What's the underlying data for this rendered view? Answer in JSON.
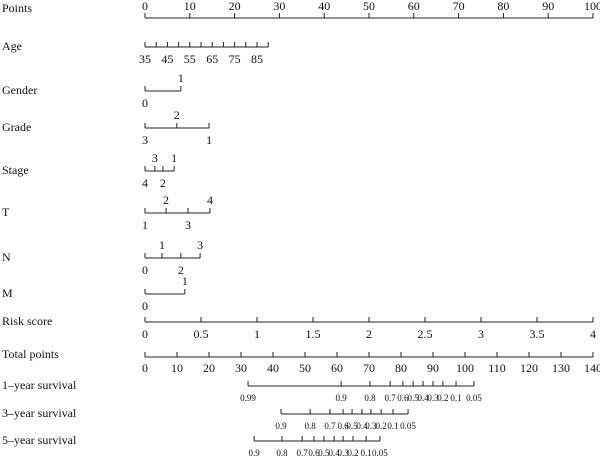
{
  "chart_data": {
    "type": "nomogram",
    "points_axis": {
      "label": "Points",
      "lim": [
        0,
        100
      ],
      "ticks": [
        0,
        10,
        20,
        30,
        40,
        50,
        60,
        70,
        80,
        90,
        100
      ]
    },
    "variables": [
      {
        "label": "Age",
        "ticks": [
          {
            "value": 35,
            "points": 0
          },
          {
            "value": null,
            "points": 2.5
          },
          {
            "value": 45,
            "points": 5
          },
          {
            "value": null,
            "points": 7.5
          },
          {
            "value": 55,
            "points": 10
          },
          {
            "value": null,
            "points": 12.5
          },
          {
            "value": 65,
            "points": 15
          },
          {
            "value": null,
            "points": 17.5
          },
          {
            "value": 75,
            "points": 20
          },
          {
            "value": null,
            "points": 22.5
          },
          {
            "value": 85,
            "points": 25
          },
          {
            "value": null,
            "points": 27.5
          }
        ]
      },
      {
        "label": "Gender",
        "ticks": [
          {
            "value": 0,
            "points": 0,
            "side": "below"
          },
          {
            "value": 1,
            "points": 8,
            "side": "above"
          }
        ]
      },
      {
        "label": "Grade",
        "ticks": [
          {
            "value": 3,
            "points": 0,
            "side": "below"
          },
          {
            "value": 2,
            "points": 7.1,
            "side": "above"
          },
          {
            "value": 1,
            "points": 14.3,
            "side": "below"
          }
        ]
      },
      {
        "label": "Stage",
        "ticks": [
          {
            "value": 4,
            "points": 0,
            "side": "below"
          },
          {
            "value": 3,
            "points": 2.2,
            "side": "above"
          },
          {
            "value": 2,
            "points": 4,
            "side": "below"
          },
          {
            "value": 1,
            "points": 6.5,
            "side": "above"
          }
        ]
      },
      {
        "label": "T",
        "ticks": [
          {
            "value": 1,
            "points": 0,
            "side": "below"
          },
          {
            "value": 2,
            "points": 4.7,
            "side": "above"
          },
          {
            "value": 3,
            "points": 9.6,
            "side": "below"
          },
          {
            "value": 4,
            "points": 14.5,
            "side": "above"
          }
        ]
      },
      {
        "label": "N",
        "ticks": [
          {
            "value": 0,
            "points": 0,
            "side": "below"
          },
          {
            "value": 1,
            "points": 3.8,
            "side": "above"
          },
          {
            "value": 2,
            "points": 8,
            "side": "below"
          },
          {
            "value": 3,
            "points": 12.3,
            "side": "above"
          }
        ]
      },
      {
        "label": "M",
        "ticks": [
          {
            "value": 0,
            "points": 0,
            "side": "below"
          },
          {
            "value": 1,
            "points": 8.9,
            "side": "above"
          }
        ]
      },
      {
        "label": "Risk score",
        "ticks": [
          {
            "value": 0,
            "points": 0
          },
          {
            "value": 0.5,
            "points": 12.5
          },
          {
            "value": 1,
            "points": 25
          },
          {
            "value": 1.5,
            "points": 37.5
          },
          {
            "value": 2,
            "points": 50
          },
          {
            "value": 2.5,
            "points": 62.5
          },
          {
            "value": 3,
            "points": 75
          },
          {
            "value": 3.5,
            "points": 87.5
          },
          {
            "value": 4,
            "points": 100
          }
        ]
      }
    ],
    "total_axis": {
      "label": "Total points",
      "lim": [
        0,
        140
      ],
      "ticks": [
        0,
        10,
        20,
        30,
        40,
        50,
        60,
        70,
        80,
        90,
        100,
        110,
        120,
        130,
        140
      ]
    },
    "survival": [
      {
        "label": "1–year survival",
        "ticks": [
          {
            "value": 0.99,
            "points": 32.2
          },
          {
            "value": 0.9,
            "points": 61.3
          },
          {
            "value": 0.8,
            "points": 70.3
          },
          {
            "value": 0.7,
            "points": 76.6
          },
          {
            "value": 0.6,
            "points": 80.6
          },
          {
            "value": 0.5,
            "points": 83.8
          },
          {
            "value": 0.4,
            "points": 86.9
          },
          {
            "value": 0.3,
            "points": 90
          },
          {
            "value": 0.2,
            "points": 93.1
          },
          {
            "value": 0.1,
            "points": 97.2
          },
          {
            "value": 0.05,
            "points": 102.8
          }
        ]
      },
      {
        "label": "3–year survival",
        "ticks": [
          {
            "value": 0.9,
            "points": 42.5
          },
          {
            "value": 0.8,
            "points": 51.6
          },
          {
            "value": 0.7,
            "points": 57.8
          },
          {
            "value": 0.6,
            "points": 61.9
          },
          {
            "value": 0.5,
            "points": 64.7
          },
          {
            "value": 0.4,
            "points": 67.8
          },
          {
            "value": 0.3,
            "points": 70.6
          },
          {
            "value": 0.2,
            "points": 73.8
          },
          {
            "value": 0.1,
            "points": 77.5
          },
          {
            "value": 0.05,
            "points": 82.2
          }
        ]
      },
      {
        "label": "5–year survival",
        "ticks": [
          {
            "value": 0.9,
            "points": 34.1
          },
          {
            "value": 0.8,
            "points": 42.8
          },
          {
            "value": 0.7,
            "points": 49.1
          },
          {
            "value": 0.6,
            "points": 52.8
          },
          {
            "value": 0.5,
            "points": 55.9
          },
          {
            "value": 0.4,
            "points": 59.1
          },
          {
            "value": 0.3,
            "points": 61.9
          },
          {
            "value": 0.2,
            "points": 65
          },
          {
            "value": 0.1,
            "points": 69.1
          },
          {
            "value": 0.05,
            "points": 73.4
          }
        ]
      }
    ]
  }
}
